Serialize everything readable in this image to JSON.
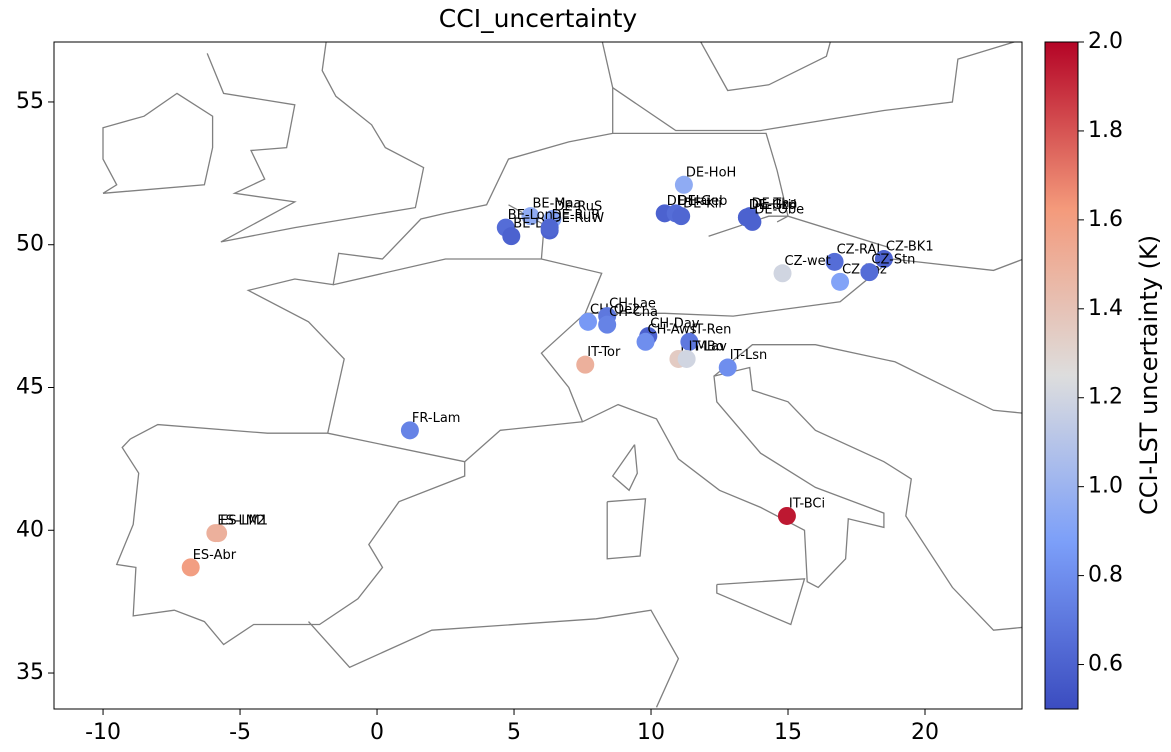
{
  "chart_data": {
    "type": "scatter",
    "title": "CCI_uncertainty",
    "labels": [
      "DE-HoH",
      "BE-Maa",
      "DE-RuS",
      "BE-Lon",
      "BE-Dor",
      "DE-RuW",
      "DE-RuR",
      "DE-Hai",
      "DE-Geb",
      "DE-Kli",
      "DE-Gri",
      "DE-Tha",
      "DE-Hzd",
      "DE-Obe",
      "CZ-RAJ",
      "CZ-BK1",
      "CZ-wet",
      "CZ-Lnz",
      "CZ-Stn",
      "CH-Oe2",
      "CH-Lae",
      "CH-Cha",
      "CH-Dav",
      "CH-Aws",
      "IT-Tor",
      "IT-MBo",
      "IT-Ren",
      "IT-Lav",
      "IT-Lsn",
      "FR-Lam",
      "IT-BCi",
      "ES-LM1",
      "ES-LM2",
      "ES-Abr"
    ],
    "x": [
      11.2,
      5.6,
      6.4,
      4.7,
      4.9,
      6.3,
      6.3,
      10.5,
      10.9,
      11.1,
      13.5,
      13.6,
      13.5,
      13.7,
      16.7,
      18.5,
      14.8,
      16.9,
      17.97,
      7.7,
      8.4,
      8.4,
      9.9,
      9.8,
      7.6,
      11.0,
      11.4,
      11.3,
      12.8,
      1.2,
      14.96,
      -5.8,
      -5.9,
      -6.8
    ],
    "y": [
      52.1,
      51.0,
      50.9,
      50.6,
      50.3,
      50.5,
      50.6,
      51.1,
      51.1,
      51.0,
      50.95,
      51.0,
      50.96,
      50.8,
      49.4,
      49.5,
      49.0,
      48.7,
      49.04,
      47.3,
      47.5,
      47.2,
      46.8,
      46.6,
      45.8,
      46.0,
      46.6,
      46.0,
      45.7,
      43.5,
      40.5,
      39.9,
      39.9,
      38.7
    ],
    "values": [
      0.95,
      0.95,
      0.9,
      0.65,
      0.6,
      0.6,
      0.62,
      0.6,
      0.65,
      0.62,
      0.65,
      0.62,
      0.6,
      0.6,
      0.65,
      0.6,
      1.2,
      0.9,
      0.65,
      0.85,
      0.7,
      0.75,
      0.6,
      0.8,
      1.5,
      1.35,
      0.7,
      1.2,
      0.8,
      0.75,
      1.95,
      1.5,
      1.5,
      1.6
    ],
    "xlim": [
      -11.79,
      23.54
    ],
    "ylim": [
      33.74,
      57.1
    ],
    "xticks": [
      -10,
      -5,
      0,
      5,
      10,
      15,
      20
    ],
    "yticks": [
      35,
      40,
      45,
      50,
      55
    ],
    "colormap": "coolwarm",
    "clim": [
      0.5,
      2.0
    ],
    "colorbar_ticks": [
      0.6,
      0.8,
      {
        "value": 1,
        "label": "1.0"
      },
      1.2,
      1.4,
      1.6,
      1.8,
      {
        "value": 2,
        "label": "2.0"
      }
    ],
    "colorbar_label": "CCI-LST uncertainty (K)"
  }
}
